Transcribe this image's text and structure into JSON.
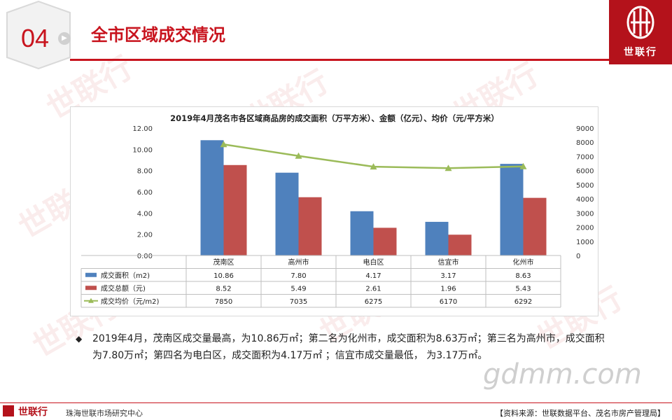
{
  "header": {
    "section_number": "04",
    "title": "全市区域成交情况"
  },
  "brand": {
    "logo_text": "世联行",
    "watermark_text": "世联行",
    "color": "#b4121b"
  },
  "chart_data": {
    "type": "bar",
    "title": "2019年4月茂名市各区域商品房的成交面积（万平方米）、金额（亿元）、均价（元/平方米）",
    "categories": [
      "茂南区",
      "高州市",
      "电白区",
      "信宜市",
      "化州市"
    ],
    "series": [
      {
        "name": "成交面积（m2)",
        "type": "bar",
        "axis": "left",
        "color": "#4f81bd",
        "values": [
          10.86,
          7.8,
          4.17,
          3.17,
          8.63
        ],
        "labels": [
          "10.86",
          "7.80",
          "4.17",
          "3.17",
          "8.63"
        ]
      },
      {
        "name": "成交总额（元)",
        "type": "bar",
        "axis": "left",
        "color": "#c0504d",
        "values": [
          8.52,
          5.49,
          2.61,
          1.96,
          5.43
        ],
        "labels": [
          "8.52",
          "5.49",
          "2.61",
          "1.96",
          "5.43"
        ]
      },
      {
        "name": "成交均价（元/m2)",
        "type": "line",
        "axis": "right",
        "color": "#9bbb59",
        "values": [
          7850,
          7035,
          6275,
          6170,
          6292
        ],
        "labels": [
          "7850",
          "7035",
          "6275",
          "6170",
          "6292"
        ]
      }
    ],
    "y_left": {
      "min": 0,
      "max": 12,
      "ticks": [
        "0.00",
        "2.00",
        "4.00",
        "6.00",
        "8.00",
        "10.00",
        "12.00"
      ]
    },
    "y_right": {
      "min": 0,
      "max": 9000,
      "ticks": [
        "0",
        "1000",
        "2000",
        "3000",
        "4000",
        "5000",
        "6000",
        "7000",
        "8000",
        "9000"
      ]
    },
    "grid": false,
    "legend": "data-table"
  },
  "summary": {
    "bullet": "◆",
    "text": "2019年4月，茂南区成交量最高，为10.86万㎡；第二名为化州市，成交面积为8.63万㎡；第三名为高州市，成交面积为7.80万㎡；第四名为电白区，成交面积为4.17万㎡ ；信宜市成交量最低， 为3.17万㎡。"
  },
  "footer": {
    "brand": "世联行",
    "center": "珠海世联市场研究中心",
    "source": "【资料来源：世联数据平台、茂名市房产管理局】"
  },
  "watermark_site": "gdmm.com"
}
